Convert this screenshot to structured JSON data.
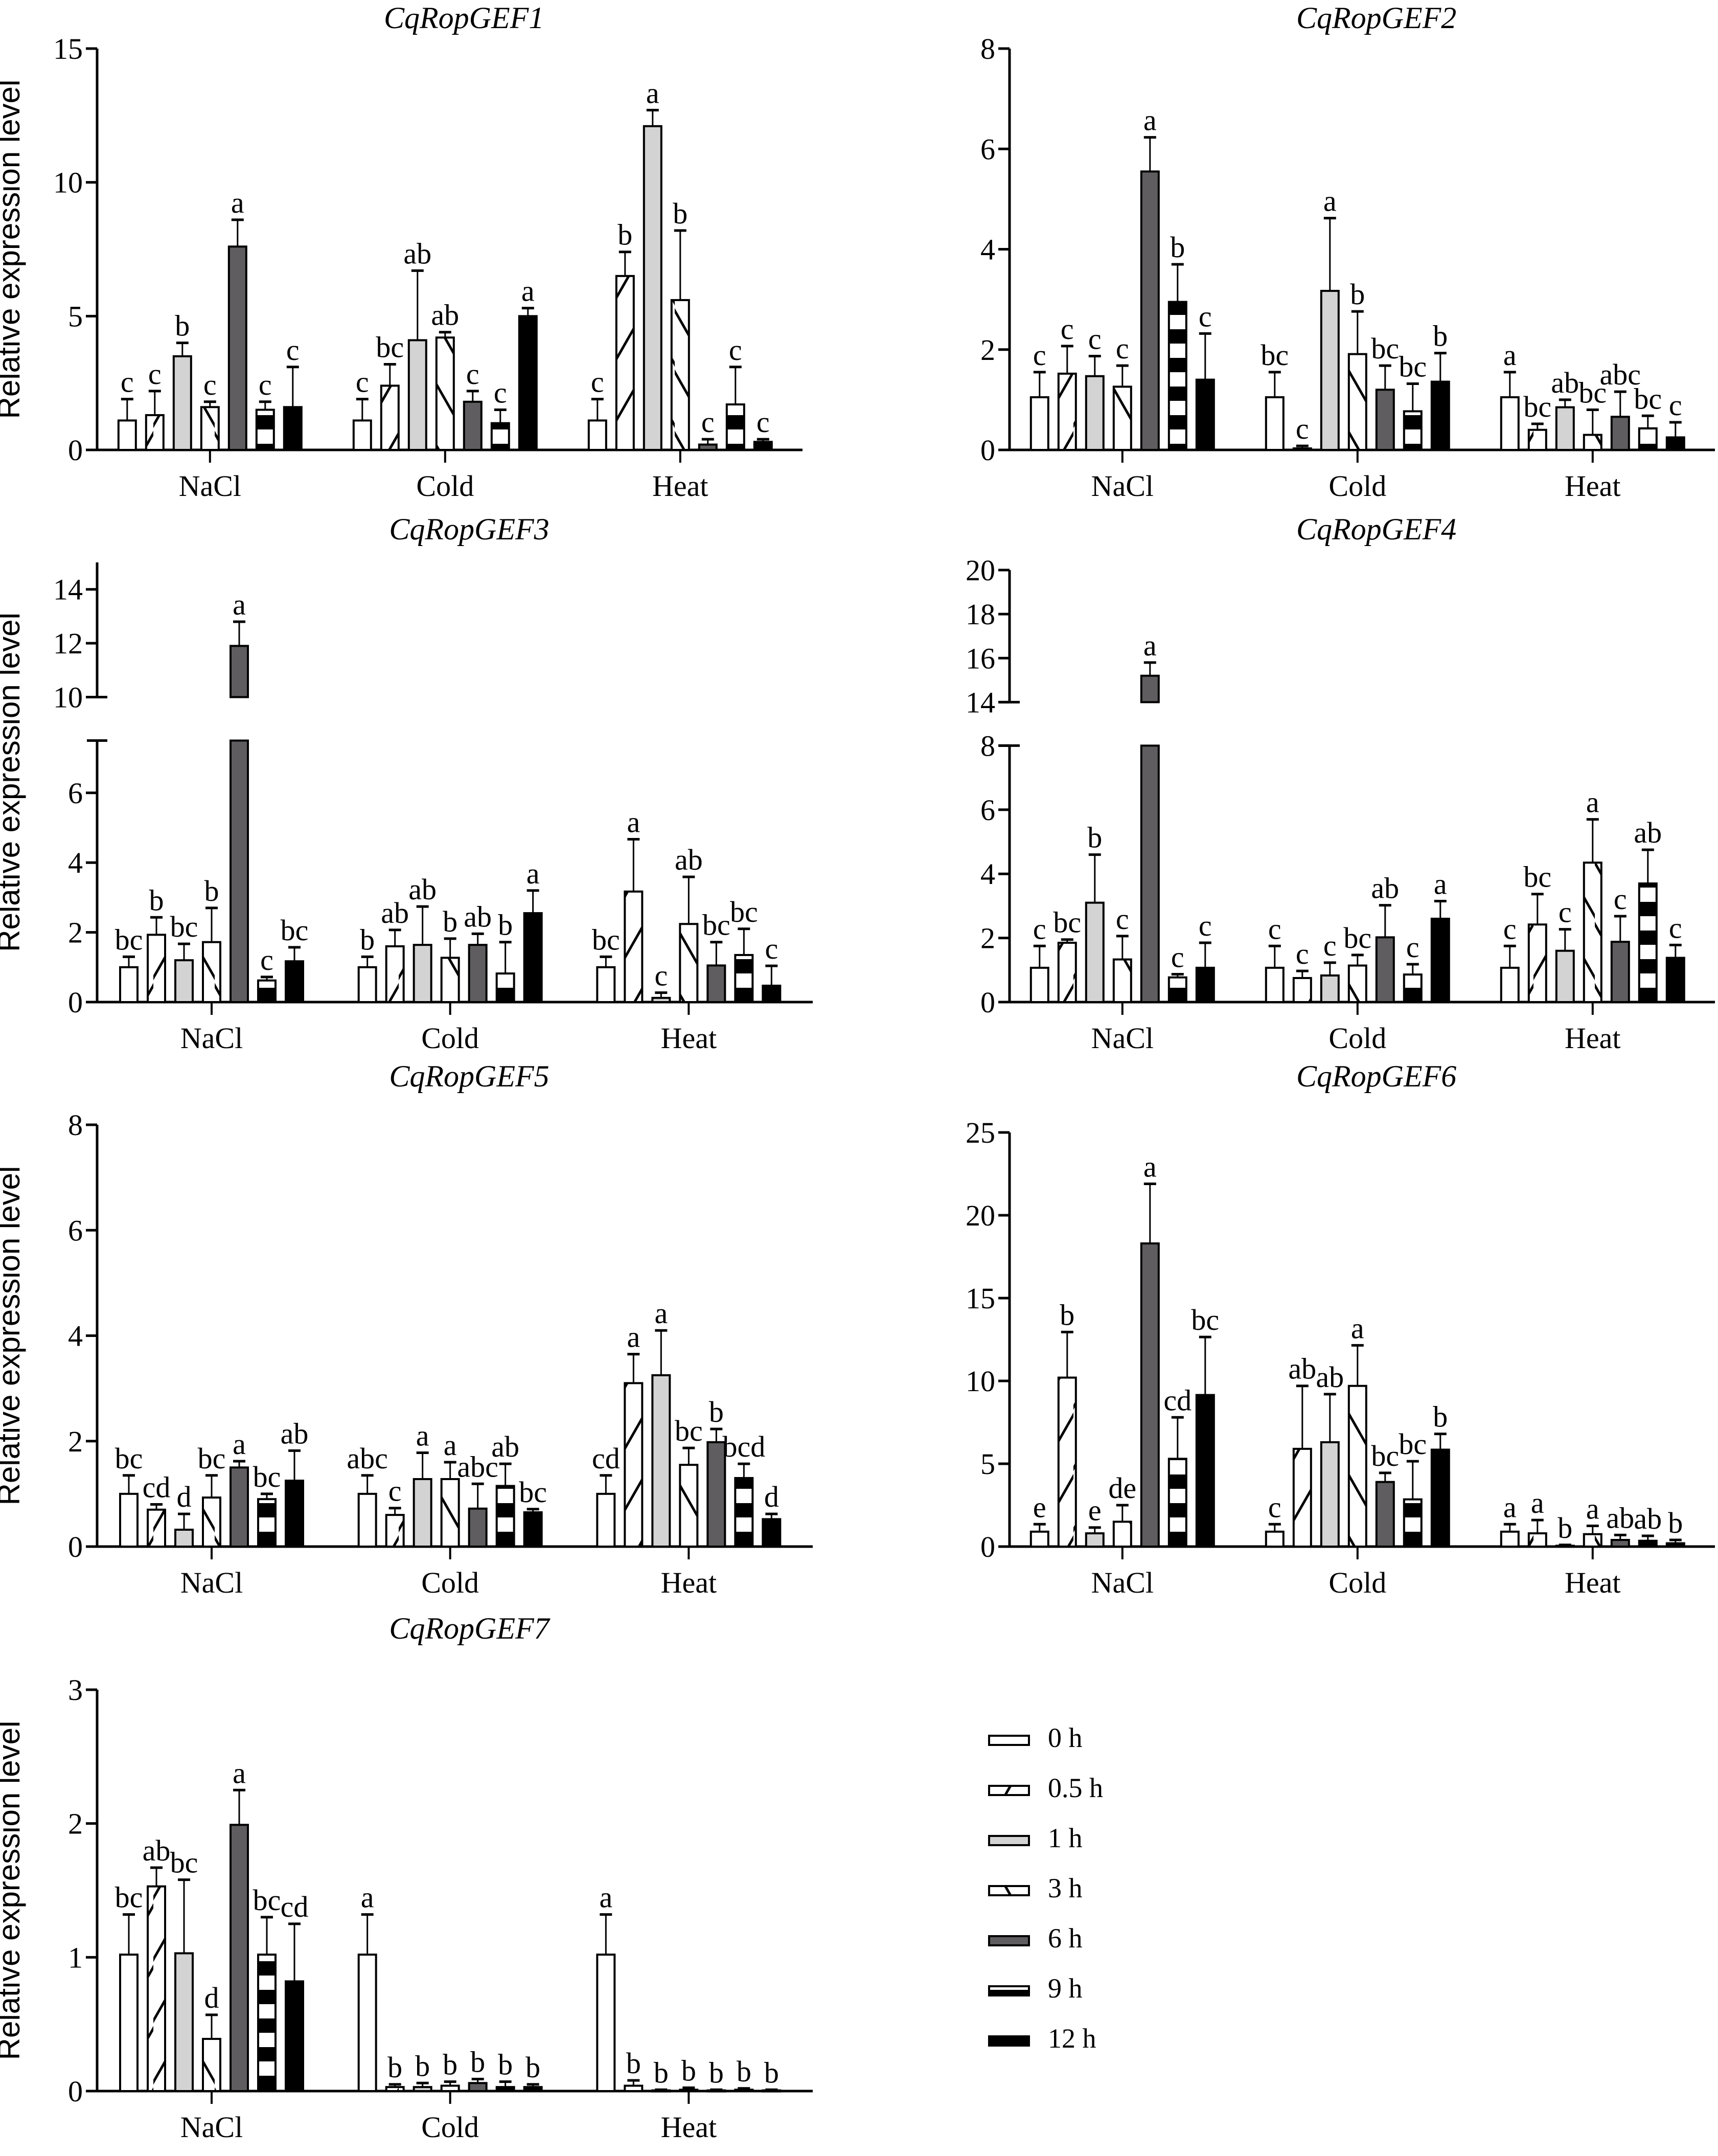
{
  "figure": {
    "ylabel": "Relative expression level",
    "categories": [
      "NaCl",
      "Cold",
      "Heat"
    ],
    "legend": [
      "0 h",
      "0.5 h",
      "1 h",
      "3 h",
      "6 h",
      "9 h",
      "12 h"
    ],
    "legend_placement": "bottom-right",
    "series_styles": [
      {
        "name": "0 h",
        "fill": "#ffffff",
        "pattern": "none"
      },
      {
        "name": "0.5 h",
        "fill": "#ffffff",
        "pattern": "forward-diagonal"
      },
      {
        "name": "1 h",
        "fill": "#d3d3d4",
        "pattern": "none"
      },
      {
        "name": "3 h",
        "fill": "#ffffff",
        "pattern": "backward-diagonal"
      },
      {
        "name": "6 h",
        "fill": "#5f5d60",
        "pattern": "none"
      },
      {
        "name": "9 h",
        "fill": "#ffffff",
        "pattern": "horizontal-stripes"
      },
      {
        "name": "12 h",
        "fill": "#000000",
        "pattern": "none"
      }
    ]
  },
  "chart_data": [
    {
      "type": "bar",
      "title": "CqRopGEF1",
      "ylabel": "Relative expression level",
      "ylim": [
        0,
        15
      ],
      "yticks": [
        0,
        5,
        10,
        15
      ],
      "categories": [
        "NaCl",
        "Cold",
        "Heat"
      ],
      "series": [
        {
          "name": "0 h",
          "values": [
            1.1,
            1.1,
            1.1
          ],
          "errors": [
            0.8,
            0.8,
            0.8
          ],
          "letters": [
            "c",
            "c",
            "c"
          ]
        },
        {
          "name": "0.5 h",
          "values": [
            1.3,
            2.4,
            6.5
          ],
          "errors": [
            0.9,
            0.8,
            0.9
          ],
          "letters": [
            "c",
            "bc",
            "b"
          ]
        },
        {
          "name": "1 h",
          "values": [
            3.5,
            4.1,
            12.1
          ],
          "errors": [
            0.5,
            2.6,
            0.6
          ],
          "letters": [
            "b",
            "ab",
            "a"
          ]
        },
        {
          "name": "3 h",
          "values": [
            1.6,
            4.2,
            5.6
          ],
          "errors": [
            0.2,
            0.2,
            2.6
          ],
          "letters": [
            "c",
            "ab",
            "b"
          ]
        },
        {
          "name": "6 h",
          "values": [
            7.6,
            1.8,
            0.2
          ],
          "errors": [
            1.0,
            0.4,
            0.2
          ],
          "letters": [
            "a",
            "c",
            "c"
          ]
        },
        {
          "name": "9 h",
          "values": [
            1.5,
            1.0,
            1.7
          ],
          "errors": [
            0.3,
            0.5,
            1.4
          ],
          "letters": [
            "c",
            "c",
            "c"
          ]
        },
        {
          "name": "12 h",
          "values": [
            1.6,
            5.0,
            0.3
          ],
          "errors": [
            1.5,
            0.3,
            0.1
          ],
          "letters": [
            "c",
            "a",
            "c"
          ]
        }
      ]
    },
    {
      "type": "bar",
      "title": "CqRopGEF2",
      "ylabel": "",
      "ylim": [
        0,
        8
      ],
      "yticks": [
        0,
        2,
        4,
        6,
        8
      ],
      "categories": [
        "NaCl",
        "Cold",
        "Heat"
      ],
      "series": [
        {
          "name": "0 h",
          "values": [
            1.05,
            1.05,
            1.05
          ],
          "errors": [
            0.5,
            0.5,
            0.5
          ],
          "letters": [
            "c",
            "bc",
            "a"
          ]
        },
        {
          "name": "0.5 h",
          "values": [
            1.52,
            0.03,
            0.4
          ],
          "errors": [
            0.55,
            0.05,
            0.12
          ],
          "letters": [
            "c",
            "c",
            "bc"
          ]
        },
        {
          "name": "1 h",
          "values": [
            1.47,
            3.17,
            0.85
          ],
          "errors": [
            0.4,
            1.45,
            0.15
          ],
          "letters": [
            "c",
            "a",
            "ab"
          ]
        },
        {
          "name": "3 h",
          "values": [
            1.26,
            1.91,
            0.3
          ],
          "errors": [
            0.42,
            0.85,
            0.5
          ],
          "letters": [
            "c",
            "b",
            "bc"
          ]
        },
        {
          "name": "6 h",
          "values": [
            5.55,
            1.2,
            0.66
          ],
          "errors": [
            0.68,
            0.48,
            0.5
          ],
          "letters": [
            "a",
            "bc",
            "abc"
          ]
        },
        {
          "name": "9 h",
          "values": [
            2.95,
            0.77,
            0.43
          ],
          "errors": [
            0.75,
            0.55,
            0.25
          ],
          "letters": [
            "b",
            "bc",
            "bc"
          ]
        },
        {
          "name": "12 h",
          "values": [
            1.4,
            1.36,
            0.25
          ],
          "errors": [
            0.92,
            0.57,
            0.3
          ],
          "letters": [
            "c",
            "b",
            "c"
          ]
        }
      ]
    },
    {
      "type": "bar",
      "title": "CqRopGEF3",
      "ylabel": "Relative expression level",
      "ylim": [
        0,
        15
      ],
      "axis_break": [
        7.5,
        10
      ],
      "yticks": [
        0,
        2,
        4,
        6,
        10,
        12,
        14
      ],
      "categories": [
        "NaCl",
        "Cold",
        "Heat"
      ],
      "series": [
        {
          "name": "0 h",
          "values": [
            1.0,
            1.0,
            1.0
          ],
          "errors": [
            0.3,
            0.3,
            0.3
          ],
          "letters": [
            "bc",
            "b",
            "bc"
          ]
        },
        {
          "name": "0.5 h",
          "values": [
            1.93,
            1.6,
            3.17
          ],
          "errors": [
            0.5,
            0.47,
            1.5
          ],
          "letters": [
            "b",
            "ab",
            "a"
          ]
        },
        {
          "name": "1 h",
          "values": [
            1.2,
            1.64,
            0.12
          ],
          "errors": [
            0.47,
            1.1,
            0.15
          ],
          "letters": [
            "bc",
            "ab",
            "c"
          ]
        },
        {
          "name": "3 h",
          "values": [
            1.72,
            1.27,
            2.24
          ],
          "errors": [
            0.98,
            0.55,
            1.35
          ],
          "letters": [
            "b",
            "b",
            "ab"
          ]
        },
        {
          "name": "6 h",
          "values": [
            11.9,
            1.64,
            1.05
          ],
          "errors": [
            0.9,
            0.32,
            0.67
          ],
          "letters": [
            "a",
            "ab",
            "bc"
          ]
        },
        {
          "name": "9 h",
          "values": [
            0.62,
            0.82,
            1.35
          ],
          "errors": [
            0.1,
            0.9,
            0.75
          ],
          "letters": [
            "c",
            "b",
            "bc"
          ]
        },
        {
          "name": "12 h",
          "values": [
            1.17,
            2.55,
            0.47
          ],
          "errors": [
            0.4,
            0.65,
            0.57
          ],
          "letters": [
            "bc",
            "a",
            "c"
          ]
        }
      ]
    },
    {
      "type": "bar",
      "title": "CqRopGEF4",
      "ylabel": "",
      "ylim": [
        0,
        20
      ],
      "axis_break": [
        8,
        14
      ],
      "yticks": [
        0,
        2,
        4,
        6,
        8,
        14,
        16,
        18,
        20
      ],
      "categories": [
        "NaCl",
        "Cold",
        "Heat"
      ],
      "series": [
        {
          "name": "0 h",
          "values": [
            1.07,
            1.07,
            1.07
          ],
          "errors": [
            0.68,
            0.68,
            0.68
          ],
          "letters": [
            "c",
            "c",
            "c"
          ]
        },
        {
          "name": "0.5 h",
          "values": [
            1.85,
            0.75,
            2.42
          ],
          "errors": [
            0.1,
            0.22,
            0.95
          ],
          "letters": [
            "bc",
            "c",
            "bc"
          ]
        },
        {
          "name": "1 h",
          "values": [
            3.1,
            0.83,
            1.6
          ],
          "errors": [
            1.5,
            0.4,
            0.67
          ],
          "letters": [
            "b",
            "c",
            "c"
          ]
        },
        {
          "name": "3 h",
          "values": [
            1.33,
            1.14,
            4.35
          ],
          "errors": [
            0.73,
            0.33,
            1.35
          ],
          "letters": [
            "c",
            "bc",
            "a"
          ]
        },
        {
          "name": "6 h",
          "values": [
            15.2,
            2.02,
            1.88
          ],
          "errors": [
            0.6,
            1.0,
            0.8
          ],
          "letters": [
            "a",
            "ab",
            "c"
          ]
        },
        {
          "name": "9 h",
          "values": [
            0.77,
            0.86,
            3.7
          ],
          "errors": [
            0.1,
            0.32,
            1.05
          ],
          "letters": [
            "c",
            "c",
            "ab"
          ]
        },
        {
          "name": "12 h",
          "values": [
            1.07,
            2.6,
            1.38
          ],
          "errors": [
            0.78,
            0.55,
            0.4
          ],
          "letters": [
            "c",
            "a",
            "c"
          ]
        }
      ]
    },
    {
      "type": "bar",
      "title": "CqRopGEF5",
      "ylabel": "Relative expression level",
      "ylim": [
        0,
        8
      ],
      "yticks": [
        0,
        2,
        4,
        6,
        8
      ],
      "categories": [
        "NaCl",
        "Cold",
        "Heat"
      ],
      "series": [
        {
          "name": "0 h",
          "values": [
            1.0,
            1.0,
            1.0
          ],
          "errors": [
            0.35,
            0.35,
            0.35
          ],
          "letters": [
            "bc",
            "abc",
            "cd"
          ]
        },
        {
          "name": "0.5 h",
          "values": [
            0.7,
            0.6,
            3.1
          ],
          "errors": [
            0.1,
            0.13,
            0.55
          ],
          "letters": [
            "cd",
            "c",
            "a"
          ]
        },
        {
          "name": "1 h",
          "values": [
            0.32,
            1.28,
            3.25
          ],
          "errors": [
            0.3,
            0.5,
            0.85
          ],
          "letters": [
            "d",
            "a",
            "a"
          ]
        },
        {
          "name": "3 h",
          "values": [
            0.93,
            1.28,
            1.55
          ],
          "errors": [
            0.42,
            0.32,
            0.32
          ],
          "letters": [
            "bc",
            "a",
            "bc"
          ]
        },
        {
          "name": "6 h",
          "values": [
            1.5,
            0.72,
            1.98
          ],
          "errors": [
            0.12,
            0.47,
            0.25
          ],
          "letters": [
            "a",
            "abc",
            "b"
          ]
        },
        {
          "name": "9 h",
          "values": [
            0.9,
            1.15,
            1.3
          ],
          "errors": [
            0.1,
            0.42,
            0.27
          ],
          "letters": [
            "bc",
            "ab",
            "bcd"
          ]
        },
        {
          "name": "12 h",
          "values": [
            1.25,
            0.65,
            0.52
          ],
          "errors": [
            0.57,
            0.06,
            0.1
          ],
          "letters": [
            "ab",
            "bc",
            "d"
          ]
        }
      ]
    },
    {
      "type": "bar",
      "title": "CqRopGEF6",
      "ylabel": "",
      "ylim": [
        0,
        25
      ],
      "yticks": [
        0,
        5,
        10,
        15,
        20,
        25
      ],
      "categories": [
        "NaCl",
        "Cold",
        "Heat"
      ],
      "series": [
        {
          "name": "0 h",
          "values": [
            0.9,
            0.9,
            0.9
          ],
          "errors": [
            0.45,
            0.45,
            0.45
          ],
          "letters": [
            "e",
            "c",
            "a"
          ]
        },
        {
          "name": "0.5 h",
          "values": [
            10.2,
            5.9,
            0.8
          ],
          "errors": [
            2.75,
            3.8,
            0.8
          ],
          "letters": [
            "b",
            "ab",
            "a"
          ]
        },
        {
          "name": "1 h",
          "values": [
            0.8,
            6.3,
            0.05
          ],
          "errors": [
            0.35,
            2.9,
            0.05
          ],
          "letters": [
            "e",
            "ab",
            "b"
          ]
        },
        {
          "name": "3 h",
          "values": [
            1.5,
            9.7,
            0.75
          ],
          "errors": [
            1.0,
            2.45,
            0.5
          ],
          "letters": [
            "de",
            "a",
            "a"
          ]
        },
        {
          "name": "6 h",
          "values": [
            18.3,
            3.9,
            0.4
          ],
          "errors": [
            3.6,
            0.55,
            0.3
          ],
          "letters": [
            "a",
            "bc",
            "ab"
          ]
        },
        {
          "name": "9 h",
          "values": [
            5.3,
            2.85,
            0.35
          ],
          "errors": [
            2.5,
            2.3,
            0.3
          ],
          "letters": [
            "cd",
            "bc",
            "ab"
          ]
        },
        {
          "name": "12 h",
          "values": [
            9.15,
            5.85,
            0.2
          ],
          "errors": [
            3.5,
            0.95,
            0.2
          ],
          "letters": [
            "bc",
            "b",
            "b"
          ]
        }
      ]
    },
    {
      "type": "bar",
      "title": "CqRopGEF7",
      "ylabel": "Relative expression level",
      "ylim": [
        0,
        3
      ],
      "yticks": [
        0,
        1,
        2,
        3
      ],
      "categories": [
        "NaCl",
        "Cold",
        "Heat"
      ],
      "series": [
        {
          "name": "0 h",
          "values": [
            1.02,
            1.02,
            1.02
          ],
          "errors": [
            0.3,
            0.3,
            0.3
          ],
          "letters": [
            "bc",
            "a",
            "a"
          ]
        },
        {
          "name": "0.5 h",
          "values": [
            1.53,
            0.03,
            0.04
          ],
          "errors": [
            0.14,
            0.02,
            0.04
          ],
          "letters": [
            "ab",
            "b",
            "b"
          ]
        },
        {
          "name": "1 h",
          "values": [
            1.03,
            0.03,
            0.005
          ],
          "errors": [
            0.55,
            0.03,
            0.005
          ],
          "letters": [
            "bc",
            "b",
            "b"
          ]
        },
        {
          "name": "3 h",
          "values": [
            0.39,
            0.04,
            0.01
          ],
          "errors": [
            0.18,
            0.03,
            0.015
          ],
          "letters": [
            "d",
            "b",
            "b"
          ]
        },
        {
          "name": "6 h",
          "values": [
            1.99,
            0.06,
            0.005
          ],
          "errors": [
            0.26,
            0.03,
            0.005
          ],
          "letters": [
            "a",
            "b",
            "b"
          ]
        },
        {
          "name": "9 h",
          "values": [
            1.02,
            0.03,
            0.01
          ],
          "errors": [
            0.28,
            0.04,
            0.01
          ],
          "letters": [
            "bc",
            "b",
            "b"
          ]
        },
        {
          "name": "12 h",
          "values": [
            0.82,
            0.03,
            0.005
          ],
          "errors": [
            0.43,
            0.02,
            0.005
          ],
          "letters": [
            "cd",
            "b",
            "b"
          ]
        }
      ]
    }
  ]
}
